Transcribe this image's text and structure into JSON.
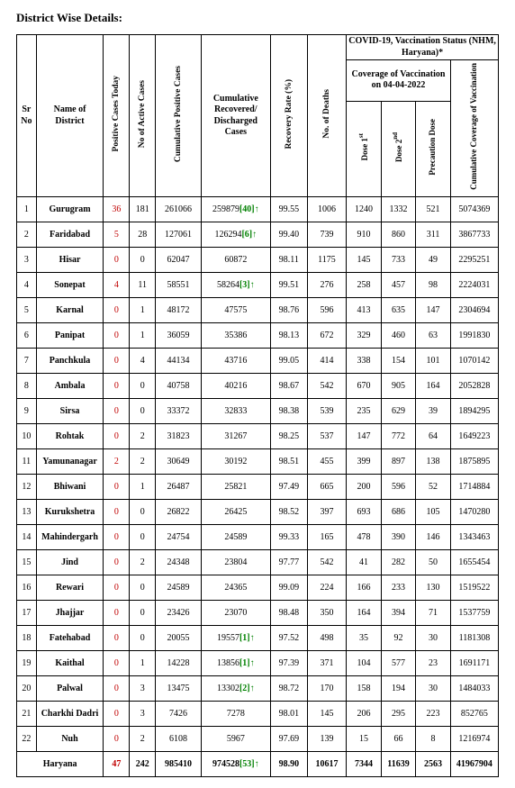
{
  "title": "District Wise Details:",
  "headers": {
    "sr": "Sr No",
    "name": "Name of District",
    "today": "Positive Cases Today",
    "active": "No of Active Cases",
    "cumulative": "Cumulative Positive Cases",
    "recovered": "Cumulative Recovered/ Discharged Cases",
    "rate": "Recovery Rate (%)",
    "deaths": "No. of Deaths",
    "vacc_group": "COVID-19, Vaccination Status (NHM, Haryana)*",
    "coverage": "Coverage of Vaccination on 04-04-2022",
    "cum_cov": "Cumulative Coverage of Vaccination",
    "dose1": "Dose 1",
    "dose1_sup": "st",
    "dose2": "Dose 2",
    "dose2_sup": "nd",
    "precaution": "Precaution Dose"
  },
  "rows": [
    {
      "sr": "1",
      "name": "Gurugram",
      "today": "36",
      "active": "181",
      "cum": "261066",
      "rec": "259879",
      "rec_ext": "[40]",
      "rec_arrow": "↑",
      "rate": "99.55",
      "deaths": "1006",
      "d1": "1240",
      "d2": "1332",
      "d3": "521",
      "cv": "5074369"
    },
    {
      "sr": "2",
      "name": "Faridabad",
      "today": "5",
      "active": "28",
      "cum": "127061",
      "rec": "126294",
      "rec_ext": "[6]",
      "rec_arrow": "↑",
      "rate": "99.40",
      "deaths": "739",
      "d1": "910",
      "d2": "860",
      "d3": "311",
      "cv": "3867733"
    },
    {
      "sr": "3",
      "name": "Hisar",
      "today": "0",
      "active": "0",
      "cum": "62047",
      "rec": "60872",
      "rec_ext": "",
      "rec_arrow": "",
      "rate": "98.11",
      "deaths": "1175",
      "d1": "145",
      "d2": "733",
      "d3": "49",
      "cv": "2295251"
    },
    {
      "sr": "4",
      "name": "Sonepat",
      "today": "4",
      "active": "11",
      "cum": "58551",
      "rec": "58264",
      "rec_ext": "[3]",
      "rec_arrow": "↑",
      "rate": "99.51",
      "deaths": "276",
      "d1": "258",
      "d2": "457",
      "d3": "98",
      "cv": "2224031"
    },
    {
      "sr": "5",
      "name": "Karnal",
      "today": "0",
      "active": "1",
      "cum": "48172",
      "rec": "47575",
      "rec_ext": "",
      "rec_arrow": "",
      "rate": "98.76",
      "deaths": "596",
      "d1": "413",
      "d2": "635",
      "d3": "147",
      "cv": "2304694"
    },
    {
      "sr": "6",
      "name": "Panipat",
      "today": "0",
      "active": "1",
      "cum": "36059",
      "rec": "35386",
      "rec_ext": "",
      "rec_arrow": "",
      "rate": "98.13",
      "deaths": "672",
      "d1": "329",
      "d2": "460",
      "d3": "63",
      "cv": "1991830"
    },
    {
      "sr": "7",
      "name": "Panchkula",
      "today": "0",
      "active": "4",
      "cum": "44134",
      "rec": "43716",
      "rec_ext": "",
      "rec_arrow": "",
      "rate": "99.05",
      "deaths": "414",
      "d1": "338",
      "d2": "154",
      "d3": "101",
      "cv": "1070142"
    },
    {
      "sr": "8",
      "name": "Ambala",
      "today": "0",
      "active": "0",
      "cum": "40758",
      "rec": "40216",
      "rec_ext": "",
      "rec_arrow": "",
      "rate": "98.67",
      "deaths": "542",
      "d1": "670",
      "d2": "905",
      "d3": "164",
      "cv": "2052828"
    },
    {
      "sr": "9",
      "name": "Sirsa",
      "today": "0",
      "active": "0",
      "cum": "33372",
      "rec": "32833",
      "rec_ext": "",
      "rec_arrow": "",
      "rate": "98.38",
      "deaths": "539",
      "d1": "235",
      "d2": "629",
      "d3": "39",
      "cv": "1894295"
    },
    {
      "sr": "10",
      "name": "Rohtak",
      "today": "0",
      "active": "2",
      "cum": "31823",
      "rec": "31267",
      "rec_ext": "",
      "rec_arrow": "",
      "rate": "98.25",
      "deaths": "537",
      "d1": "147",
      "d2": "772",
      "d3": "64",
      "cv": "1649223"
    },
    {
      "sr": "11",
      "name": "Yamunanagar",
      "today": "2",
      "active": "2",
      "cum": "30649",
      "rec": "30192",
      "rec_ext": "",
      "rec_arrow": "",
      "rate": "98.51",
      "deaths": "455",
      "d1": "399",
      "d2": "897",
      "d3": "138",
      "cv": "1875895"
    },
    {
      "sr": "12",
      "name": "Bhiwani",
      "today": "0",
      "active": "1",
      "cum": "26487",
      "rec": "25821",
      "rec_ext": "",
      "rec_arrow": "",
      "rate": "97.49",
      "deaths": "665",
      "d1": "200",
      "d2": "596",
      "d3": "52",
      "cv": "1714884"
    },
    {
      "sr": "13",
      "name": "Kurukshetra",
      "today": "0",
      "active": "0",
      "cum": "26822",
      "rec": "26425",
      "rec_ext": "",
      "rec_arrow": "",
      "rate": "98.52",
      "deaths": "397",
      "d1": "693",
      "d2": "686",
      "d3": "105",
      "cv": "1470280"
    },
    {
      "sr": "14",
      "name": "Mahindergarh",
      "today": "0",
      "active": "0",
      "cum": "24754",
      "rec": "24589",
      "rec_ext": "",
      "rec_arrow": "",
      "rate": "99.33",
      "deaths": "165",
      "d1": "478",
      "d2": "390",
      "d3": "146",
      "cv": "1343463"
    },
    {
      "sr": "15",
      "name": "Jind",
      "today": "0",
      "active": "2",
      "cum": "24348",
      "rec": "23804",
      "rec_ext": "",
      "rec_arrow": "",
      "rate": "97.77",
      "deaths": "542",
      "d1": "41",
      "d2": "282",
      "d3": "50",
      "cv": "1655454"
    },
    {
      "sr": "16",
      "name": "Rewari",
      "today": "0",
      "active": "0",
      "cum": "24589",
      "rec": "24365",
      "rec_ext": "",
      "rec_arrow": "",
      "rate": "99.09",
      "deaths": "224",
      "d1": "166",
      "d2": "233",
      "d3": "130",
      "cv": "1519522"
    },
    {
      "sr": "17",
      "name": "Jhajjar",
      "today": "0",
      "active": "0",
      "cum": "23426",
      "rec": "23070",
      "rec_ext": "",
      "rec_arrow": "",
      "rate": "98.48",
      "deaths": "350",
      "d1": "164",
      "d2": "394",
      "d3": "71",
      "cv": "1537759"
    },
    {
      "sr": "18",
      "name": "Fatehabad",
      "today": "0",
      "active": "0",
      "cum": "20055",
      "rec": "19557",
      "rec_ext": "[1]",
      "rec_arrow": "↑",
      "rate": "97.52",
      "deaths": "498",
      "d1": "35",
      "d2": "92",
      "d3": "30",
      "cv": "1181308"
    },
    {
      "sr": "19",
      "name": "Kaithal",
      "today": "0",
      "active": "1",
      "cum": "14228",
      "rec": "13856",
      "rec_ext": "[1]",
      "rec_arrow": "↑",
      "rate": "97.39",
      "deaths": "371",
      "d1": "104",
      "d2": "577",
      "d3": "23",
      "cv": "1691171"
    },
    {
      "sr": "20",
      "name": "Palwal",
      "today": "0",
      "active": "3",
      "cum": "13475",
      "rec": "13302",
      "rec_ext": "[2]",
      "rec_arrow": "↑",
      "rate": "98.72",
      "deaths": "170",
      "d1": "158",
      "d2": "194",
      "d3": "30",
      "cv": "1484033"
    },
    {
      "sr": "21",
      "name": "Charkhi Dadri",
      "today": "0",
      "active": "3",
      "cum": "7426",
      "rec": "7278",
      "rec_ext": "",
      "rec_arrow": "",
      "rate": "98.01",
      "deaths": "145",
      "d1": "206",
      "d2": "295",
      "d3": "223",
      "cv": "852765"
    },
    {
      "sr": "22",
      "name": "Nuh",
      "today": "0",
      "active": "2",
      "cum": "6108",
      "rec": "5967",
      "rec_ext": "",
      "rec_arrow": "",
      "rate": "97.69",
      "deaths": "139",
      "d1": "15",
      "d2": "66",
      "d3": "8",
      "cv": "1216974"
    }
  ],
  "total": {
    "name": "Haryana",
    "today": "47",
    "active": "242",
    "cum": "985410",
    "rec": "974528",
    "rec_ext": "[53]",
    "rec_arrow": "↑",
    "rate": "98.90",
    "deaths": "10617",
    "d1": "7344",
    "d2": "11639",
    "d3": "2563",
    "cv": "41967904"
  }
}
